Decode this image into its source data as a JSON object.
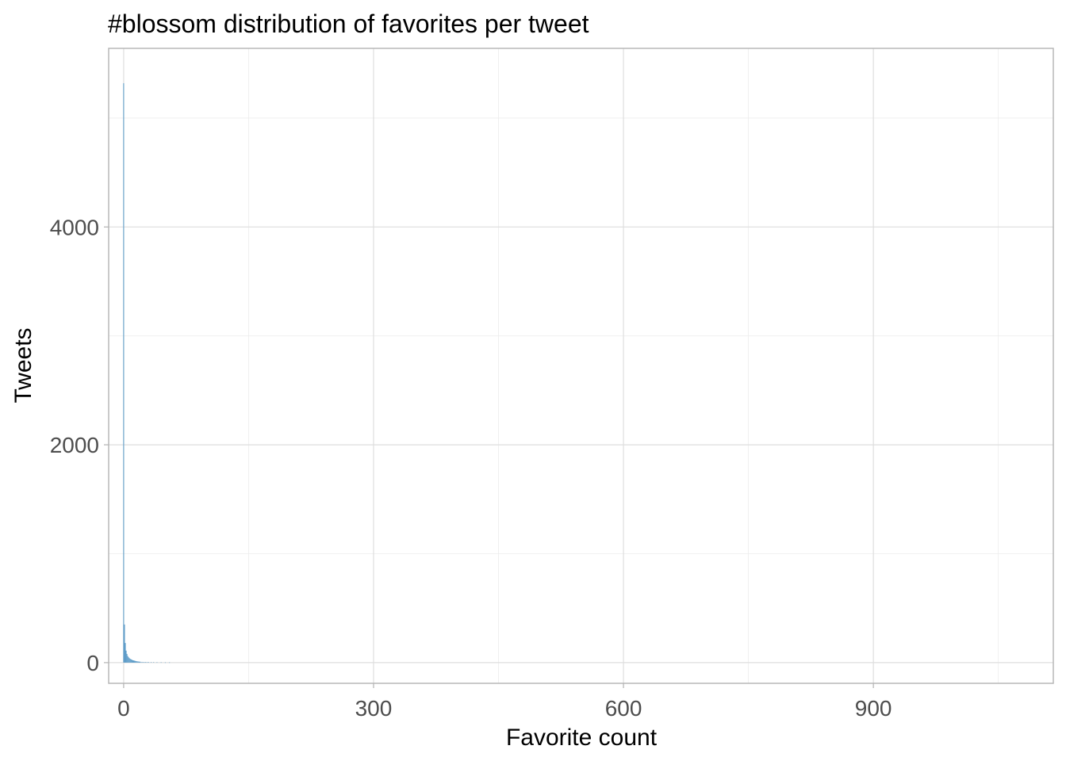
{
  "chart_data": {
    "type": "bar",
    "title": "#blossom distribution of favorites per tweet",
    "xlabel": "Favorite count",
    "ylabel": "Tweets",
    "xlim": [
      -18,
      1116
    ],
    "ylim": [
      -190,
      5640
    ],
    "x_ticks": [
      0,
      300,
      600,
      900
    ],
    "y_ticks": [
      0,
      2000,
      4000
    ],
    "x_minor_ticks": [
      150,
      450,
      750,
      1050
    ],
    "y_minor_ticks": [
      1000,
      3000,
      5000
    ],
    "grid": true,
    "legend": "none",
    "bar_color": "#5b9bc8",
    "bin_width": 1,
    "x": [
      0,
      1,
      2,
      3,
      4,
      5,
      6,
      7,
      8,
      9,
      10,
      11,
      12,
      13,
      14,
      15,
      16,
      17,
      18,
      19,
      20,
      22,
      24,
      26,
      28,
      30,
      33,
      36,
      40,
      45,
      50,
      55
    ],
    "values": [
      5320,
      350,
      180,
      110,
      80,
      60,
      48,
      40,
      34,
      30,
      26,
      22,
      20,
      18,
      16,
      14,
      12,
      11,
      10,
      9,
      8,
      7,
      6,
      6,
      5,
      5,
      4,
      4,
      3,
      3,
      2,
      2
    ]
  }
}
